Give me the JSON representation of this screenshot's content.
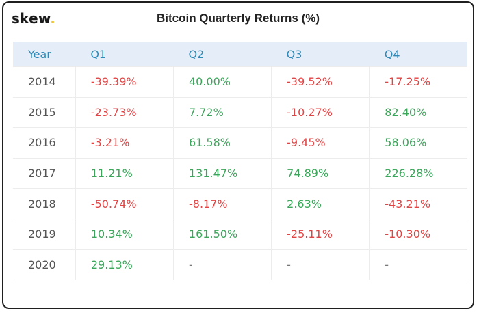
{
  "brand": {
    "name": "skew",
    "dot": "."
  },
  "colors": {
    "positive": "#3aa65a",
    "negative": "#e04545",
    "header_bg": "#e5eef8",
    "header_text": "#2f8ab8",
    "brand_dot": "#f2c230"
  },
  "chart_data": {
    "type": "table",
    "title": "Bitcoin Quarterly Returns (%)",
    "columns": [
      "Year",
      "Q1",
      "Q2",
      "Q3",
      "Q4"
    ],
    "rows": [
      {
        "year": "2014",
        "values": [
          "-39.39%",
          "40.00%",
          "-39.52%",
          "-17.25%"
        ]
      },
      {
        "year": "2015",
        "values": [
          "-23.73%",
          "7.72%",
          "-10.27%",
          "82.40%"
        ]
      },
      {
        "year": "2016",
        "values": [
          "-3.21%",
          "61.58%",
          "-9.45%",
          "58.06%"
        ]
      },
      {
        "year": "2017",
        "values": [
          "11.21%",
          "131.47%",
          "74.89%",
          "226.28%"
        ]
      },
      {
        "year": "2018",
        "values": [
          "-50.74%",
          "-8.17%",
          "2.63%",
          "-43.21%"
        ]
      },
      {
        "year": "2019",
        "values": [
          "10.34%",
          "161.50%",
          "-25.11%",
          "-10.30%"
        ]
      },
      {
        "year": "2020",
        "values": [
          "29.13%",
          "-",
          "-",
          "-"
        ]
      }
    ]
  }
}
